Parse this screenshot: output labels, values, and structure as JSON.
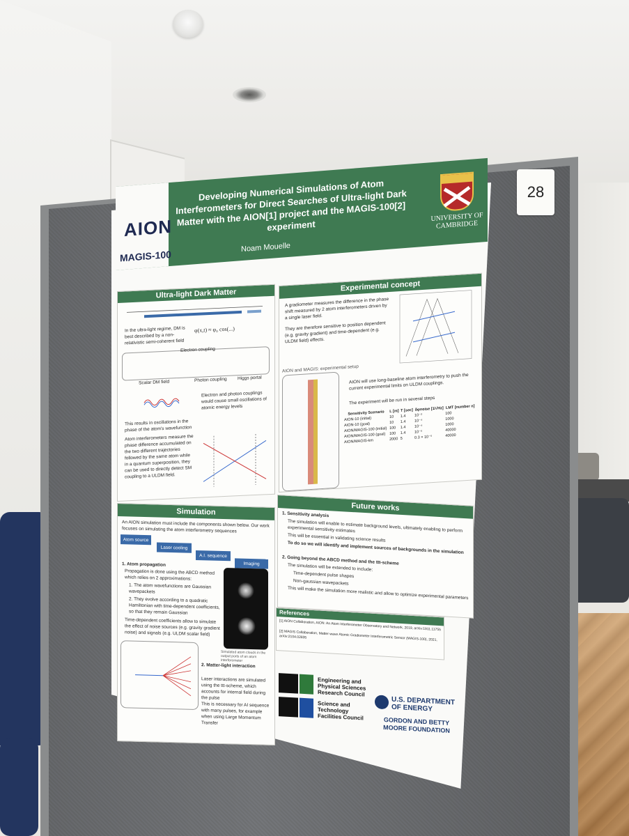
{
  "board": {
    "number": "28"
  },
  "poster": {
    "title": "Developing Numerical Simulations of Atom Interferometers for Direct Searches of Ultra-light Dark Matter with the AION[1] project and the MAGIS-100[2] experiment",
    "author": "Noam Mouelle",
    "logos": {
      "aion": "AION",
      "magis": "MAGIS-100",
      "cambridge": "UNIVERSITY OF CAMBRIDGE"
    },
    "sections": {
      "uldm": {
        "heading": "Ultra-light Dark Matter",
        "intro": "In the ultra-light regime, DM is best described by a non-relativistic semi-coherent field",
        "coupling_labels": [
          "Electron coupling",
          "Scalar DM field",
          "Photon coupling",
          "Higgs portal"
        ],
        "coupling_text": "Electron and photon couplings would cause small oscillations of atomic energy levels",
        "bullets": [
          "This results in oscillations in the phase of the atom's wavefunction",
          "Atom interferometers measure the phase difference accumulated on the two different trajectories followed by the same atom while in a quantum superposition, they can be used to directly detect SM coupling to a ULDM field."
        ]
      },
      "experimental": {
        "heading": "Experimental concept",
        "bullets": [
          "A gradiometer measures the difference in the phase shift measured by 2 atom interferometers driven by a single laser field.",
          "They are therefore sensitive to position dependent (e.g. gravity gradient) and time-dependent (e.g. ULDM field) effects.",
          "AION will use long-baseline atom interferometry to push the current experimental limits on ULDM couplings.",
          "The experiment will be run in several steps"
        ],
        "setup_caption": "AION and MAGIS: experimental setup",
        "table": {
          "headers": [
            "Sensitivity Scenario",
            "L [m]",
            "T [sec]",
            "δφnoise [1/√Hz]",
            "LMT [number n]"
          ],
          "rows": [
            [
              "AION-10 (initial)",
              "10",
              "1.4",
              "10⁻³",
              "100"
            ],
            [
              "AION-10 (goal)",
              "10",
              "1.4",
              "10⁻⁴",
              "1000"
            ],
            [
              "AION/MAGIS-100 (initial)",
              "100",
              "1.4",
              "10⁻⁴",
              "1000"
            ],
            [
              "AION/MAGIS-100 (goal)",
              "100",
              "1.4",
              "10⁻⁵",
              "40000"
            ],
            [
              "AION/MAGIS-km",
              "2000",
              "5",
              "0.3 × 10⁻⁵",
              "40000"
            ]
          ]
        }
      },
      "future": {
        "heading": "Future works",
        "items": [
          "1. Sensitivity analysis",
          "The simulation will enable to estimate background levels, ultimately enabling to perform experimental sensitivity estimates",
          "This will be essential in validating science results",
          "To do so we will identify and implement sources of backgrounds in the simulation",
          "2. Going beyond the ABCD method and the ttt-scheme",
          "The simulation will be extended to include:",
          "Time-dependent pulse shapes",
          "Non-gaussian wavepackets",
          "This will make the simulation more realistic and allow to optimize experimental parameters"
        ]
      },
      "references": {
        "heading": "References",
        "items": [
          "[1] AION Collaboration, AION: An Atom Interferometer Observatory and Network, 2019, arXiv:1911.11755",
          "[2] MAGIS Collaboration, Matter-wave Atomic Gradiometer Interferometric Sensor (MAGIS-100), 2021, arXiv:2104.02835"
        ]
      },
      "simulation": {
        "heading": "Simulation",
        "intro": "An AION simulation must include the components shown below. Our work focuses on simulating the atom interferometry sequences",
        "flow": [
          "Atom source",
          "Laser cooling",
          "A.I. sequence",
          "Imaging"
        ],
        "atom_propagation": [
          "1. Atom propagation",
          "Propagation is done using the ABCD method which relies on 2 approximations:",
          "1. The atom wavefunctions are Gaussian wavepackets",
          "2. They evolve according to a quadratic Hamiltonian with time-dependent coefficients, so that they remain Gaussian",
          "Time-dependent coefficients allow to simulate the effect of noise sources (e.g. gravity gradient noise) and signals (e.g. ULDM scalar field)"
        ],
        "light_interaction": [
          "2. Matter-light interaction",
          "Laser interactions are simulated using the ttt-scheme, which accounts for internal field during the pulse",
          "This is necessary for AI sequence with many pulses, for example when using Large Momentum Transfer"
        ],
        "image_caption": "Simulated atom clouds in the output ports of an atom interferometer"
      }
    },
    "funders": [
      "Engineering and Physical Sciences Research Council",
      "Science and Technology Facilities Council",
      "U.S. DEPARTMENT OF ENERGY",
      "GORDON AND BETTY MOORE FOUNDATION"
    ]
  }
}
